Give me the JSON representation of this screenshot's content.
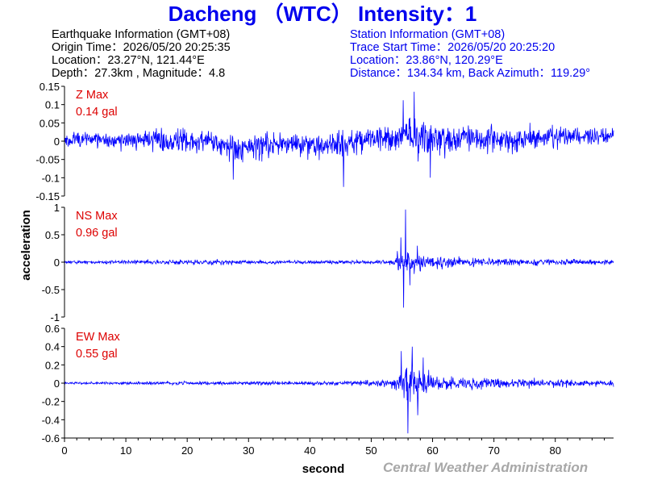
{
  "title": "Dacheng （WTC） Intensity：1",
  "earthquake_info": {
    "heading": "Earthquake Information  (GMT+08)",
    "origin_time": "Origin Time：2026/05/20 20:25:35",
    "location": "Location：23.27°N, 121.44°E",
    "depth_magnitude": "Depth：27.3km , Magnitude：4.8"
  },
  "station_info": {
    "heading": "Station Information  (GMT+08)",
    "trace_start": "Trace Start Time：2026/05/20 20:25:20",
    "location": "Location：23.86°N, 120.29°E",
    "distance": "Distance：134.34 km, Back Azimuth：119.29°"
  },
  "credit": "Central Weather Administration",
  "chart_data": {
    "type": "line",
    "xlabel": "second",
    "ylabel": "acceleration",
    "xlim": [
      0,
      89.5
    ],
    "x_ticks": [
      0,
      10,
      20,
      30,
      40,
      50,
      60,
      70,
      80
    ],
    "grid": false,
    "colors": {
      "trace": "#0000ff",
      "max_label": "#dd0000",
      "axis": "#000000"
    },
    "panels": [
      {
        "component": "Z",
        "max_label": "Z Max",
        "max_value": "0.14 gal",
        "ylim": [
          -0.15,
          0.15
        ],
        "y_ticks": [
          -0.15,
          -0.1,
          -0.05,
          0,
          0.05,
          0.1,
          0.15
        ],
        "y_tick_labels": [
          "-0.15",
          "-0.1",
          "-0.05",
          "0",
          "0.05",
          "0.1",
          "0.15"
        ],
        "envelope": [
          [
            0,
            0.035
          ],
          [
            5,
            0.04
          ],
          [
            10,
            0.045
          ],
          [
            15,
            0.05
          ],
          [
            20,
            0.055
          ],
          [
            25,
            0.06
          ],
          [
            30,
            0.055
          ],
          [
            35,
            0.05
          ],
          [
            40,
            0.055
          ],
          [
            45,
            0.055
          ],
          [
            50,
            0.06
          ],
          [
            55,
            0.075
          ],
          [
            57,
            0.09
          ],
          [
            60,
            0.07
          ],
          [
            65,
            0.06
          ],
          [
            70,
            0.06
          ],
          [
            75,
            0.055
          ],
          [
            80,
            0.05
          ],
          [
            85,
            0.045
          ],
          [
            89.5,
            0.045
          ]
        ],
        "baseline": [
          [
            0,
            0.003
          ],
          [
            8,
            0.004
          ],
          [
            15,
            0.002
          ],
          [
            22,
            -0.002
          ],
          [
            27,
            -0.018
          ],
          [
            32,
            -0.012
          ],
          [
            37,
            -0.005
          ],
          [
            42,
            -0.01
          ],
          [
            48,
            0.0
          ],
          [
            55,
            0.015
          ],
          [
            60,
            0.005
          ],
          [
            66,
            0.01
          ],
          [
            72,
            0.003
          ],
          [
            80,
            0.01
          ],
          [
            89.5,
            0.015
          ]
        ],
        "peaks": [
          {
            "x": 57.0,
            "y": 0.135
          },
          {
            "x": 55.2,
            "y": 0.112
          },
          {
            "x": 45.5,
            "y": -0.125
          },
          {
            "x": 59.6,
            "y": -0.1
          },
          {
            "x": 27.5,
            "y": -0.105
          }
        ]
      },
      {
        "component": "NS",
        "max_label": "NS Max",
        "max_value": "0.96 gal",
        "ylim": [
          -1,
          1
        ],
        "y_ticks": [
          -1,
          -0.5,
          0,
          0.5,
          1
        ],
        "y_tick_labels": [
          "-1",
          "-0.5",
          "0",
          "0.5",
          "1"
        ],
        "envelope": [
          [
            0,
            0.04
          ],
          [
            10,
            0.055
          ],
          [
            15,
            0.07
          ],
          [
            20,
            0.075
          ],
          [
            30,
            0.06
          ],
          [
            40,
            0.05
          ],
          [
            50,
            0.06
          ],
          [
            53.5,
            0.09
          ],
          [
            54.5,
            0.35
          ],
          [
            55.5,
            0.45
          ],
          [
            57,
            0.3
          ],
          [
            60,
            0.2
          ],
          [
            65,
            0.15
          ],
          [
            70,
            0.12
          ],
          [
            75,
            0.1
          ],
          [
            80,
            0.09
          ],
          [
            85,
            0.08
          ],
          [
            89.5,
            0.07
          ]
        ],
        "baseline": [
          [
            0,
            0
          ],
          [
            89.5,
            0
          ]
        ],
        "peaks": [
          {
            "x": 55.6,
            "y": 0.96
          },
          {
            "x": 55.3,
            "y": -0.83
          },
          {
            "x": 54.8,
            "y": 0.45
          },
          {
            "x": 56.3,
            "y": -0.42
          },
          {
            "x": 57.5,
            "y": 0.3
          }
        ]
      },
      {
        "component": "EW",
        "max_label": "EW Max",
        "max_value": "0.55 gal",
        "ylim": [
          -0.6,
          0.6
        ],
        "y_ticks": [
          -0.6,
          -0.4,
          -0.2,
          0,
          0.2,
          0.4,
          0.6
        ],
        "y_tick_labels": [
          "-0.6",
          "-0.4",
          "-0.2",
          "0",
          "0.2",
          "0.4",
          "0.6"
        ],
        "envelope": [
          [
            0,
            0.02
          ],
          [
            10,
            0.025
          ],
          [
            20,
            0.035
          ],
          [
            30,
            0.03
          ],
          [
            40,
            0.035
          ],
          [
            45,
            0.04
          ],
          [
            50,
            0.055
          ],
          [
            53,
            0.08
          ],
          [
            54.5,
            0.25
          ],
          [
            56,
            0.3
          ],
          [
            58,
            0.25
          ],
          [
            60,
            0.15
          ],
          [
            65,
            0.1
          ],
          [
            70,
            0.09
          ],
          [
            75,
            0.08
          ],
          [
            80,
            0.07
          ],
          [
            85,
            0.06
          ],
          [
            89.5,
            0.06
          ]
        ],
        "baseline": [
          [
            0,
            0
          ],
          [
            89.5,
            0
          ]
        ],
        "peaks": [
          {
            "x": 56.0,
            "y": -0.55
          },
          {
            "x": 56.7,
            "y": 0.4
          },
          {
            "x": 54.9,
            "y": 0.35
          },
          {
            "x": 57.6,
            "y": -0.35
          },
          {
            "x": 58.5,
            "y": 0.28
          }
        ]
      }
    ]
  }
}
